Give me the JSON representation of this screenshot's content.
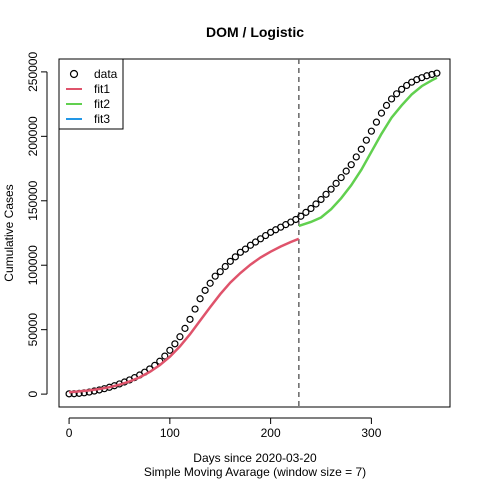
{
  "chart_data": {
    "type": "line",
    "title": "DOM / Logistic",
    "xlabel": "Days since 2020-03-20",
    "subtitle": "Simple Moving Avarage (window size = 7)",
    "ylabel": "Cumulative Cases",
    "xlim": [
      -10,
      378
    ],
    "ylim": [
      -10000,
      260000
    ],
    "x_ticks": [
      0,
      100,
      200,
      300
    ],
    "y_ticks": [
      0,
      50000,
      100000,
      150000,
      200000,
      250000
    ],
    "x_tick_labels": [
      "0",
      "100",
      "200",
      "300"
    ],
    "y_tick_labels": [
      "0",
      "50000",
      "100000",
      "150000",
      "200000",
      "250000"
    ],
    "split_x": 228,
    "legend_position": "top-left",
    "data_series": {
      "name": "data",
      "marker": "open circle",
      "color": "#000000",
      "x": [
        0,
        5,
        10,
        15,
        20,
        25,
        30,
        35,
        40,
        45,
        50,
        55,
        60,
        65,
        70,
        75,
        80,
        85,
        90,
        95,
        100,
        105,
        110,
        115,
        120,
        125,
        130,
        135,
        140,
        145,
        150,
        155,
        160,
        165,
        170,
        175,
        180,
        185,
        190,
        195,
        200,
        205,
        210,
        215,
        220,
        225,
        230,
        235,
        240,
        245,
        250,
        255,
        260,
        265,
        270,
        275,
        280,
        285,
        290,
        295,
        300,
        305,
        310,
        315,
        320,
        325,
        330,
        335,
        340,
        345,
        350,
        355,
        360,
        365
      ],
      "y": [
        200,
        300,
        600,
        1000,
        1600,
        2400,
        3200,
        4200,
        5300,
        6500,
        7900,
        9400,
        11000,
        12800,
        14800,
        17000,
        19500,
        22300,
        25500,
        29500,
        34000,
        39000,
        44500,
        51000,
        58000,
        66000,
        74000,
        80500,
        86000,
        91500,
        95000,
        99000,
        103000,
        106500,
        110000,
        112500,
        115500,
        118000,
        120500,
        123000,
        125500,
        127500,
        129500,
        131500,
        133500,
        135500,
        138000,
        141000,
        144000,
        147500,
        151000,
        155000,
        159000,
        163500,
        168000,
        173000,
        178000,
        184000,
        190000,
        197000,
        204000,
        211000,
        218000,
        224000,
        229000,
        233000,
        236500,
        239500,
        242000,
        244000,
        245500,
        247000,
        248000,
        249000
      ]
    },
    "series": [
      {
        "name": "fit1",
        "color": "#DF536B",
        "x": [
          0,
          10,
          20,
          30,
          40,
          50,
          60,
          70,
          80,
          90,
          100,
          110,
          120,
          130,
          140,
          150,
          160,
          170,
          180,
          190,
          200,
          210,
          220,
          228
        ],
        "y": [
          1500,
          2100,
          2900,
          4000,
          5400,
          7300,
          9800,
          13000,
          17200,
          22500,
          29000,
          37000,
          46500,
          57000,
          67500,
          77500,
          86500,
          94000,
          100500,
          106000,
          110500,
          114500,
          118000,
          120500
        ]
      },
      {
        "name": "fit2",
        "color": "#61D04F",
        "x": [
          228,
          240,
          250,
          260,
          270,
          280,
          290,
          300,
          310,
          320,
          330,
          340,
          350,
          360,
          365
        ],
        "y": [
          130500,
          133500,
          137000,
          143500,
          152000,
          162000,
          174000,
          188000,
          202000,
          214500,
          224000,
          232500,
          239000,
          243500,
          245500
        ]
      },
      {
        "name": "fit3",
        "color": "#2297E6",
        "x": [],
        "y": []
      }
    ]
  }
}
